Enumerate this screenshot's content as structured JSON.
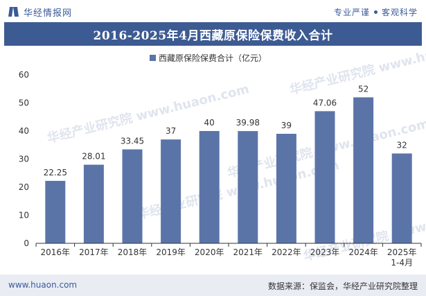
{
  "header": {
    "logo_text": "华经情报网",
    "slogan_left": "专业严谨",
    "slogan_right": "客观科学"
  },
  "chart_data": {
    "type": "bar",
    "title": "2016-2025年4月西藏原保险保费收入合计",
    "categories": [
      "2016年",
      "2017年",
      "2018年",
      "2019年",
      "2020年",
      "2021年",
      "2022年",
      "2023年",
      "2024年",
      "2025年\n1-4月"
    ],
    "series": [
      {
        "name": "西藏原保险保费合计（亿元）",
        "values": [
          22.25,
          28.01,
          33.45,
          37,
          40,
          39.98,
          39,
          47.06,
          52,
          32
        ],
        "labels": [
          "22.25",
          "28.01",
          "33.45",
          "37",
          "40",
          "39.98",
          "39",
          "47.06",
          "52",
          "32"
        ]
      }
    ],
    "yticks": [
      "0",
      "10",
      "20",
      "30",
      "40",
      "50",
      "60"
    ],
    "ylim": [
      0,
      60
    ],
    "grid": false,
    "legend": "top-center",
    "bar_color": "#5b74a8",
    "watermark": "华经产业研究院 www.huaon.com"
  },
  "footer": {
    "site": "www.huaon.com",
    "source": "数据来源：保监会，华经产业研究院整理"
  }
}
